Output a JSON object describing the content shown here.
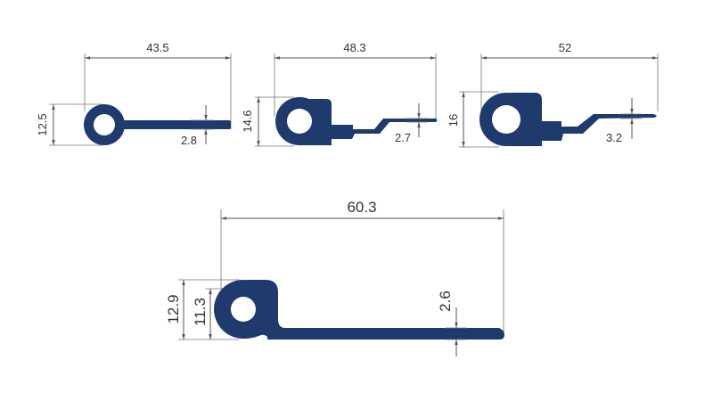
{
  "colors": {
    "profile": "#1f3b6e",
    "dimension_line": "#555555",
    "label": "#333333",
    "background": "#ffffff"
  },
  "profiles": [
    {
      "name": "profile-1",
      "dimensions": {
        "width": "43.5",
        "height": "12.5",
        "thickness": "2.8"
      }
    },
    {
      "name": "profile-2",
      "dimensions": {
        "width": "48.3",
        "height": "14.6",
        "thickness": "2.7"
      }
    },
    {
      "name": "profile-3",
      "dimensions": {
        "width": "52",
        "height": "16",
        "thickness": "3.2"
      }
    },
    {
      "name": "profile-4",
      "dimensions": {
        "width": "60.3",
        "outer_height": "12.9",
        "inner_height": "11.3",
        "thickness": "2.6"
      }
    }
  ]
}
